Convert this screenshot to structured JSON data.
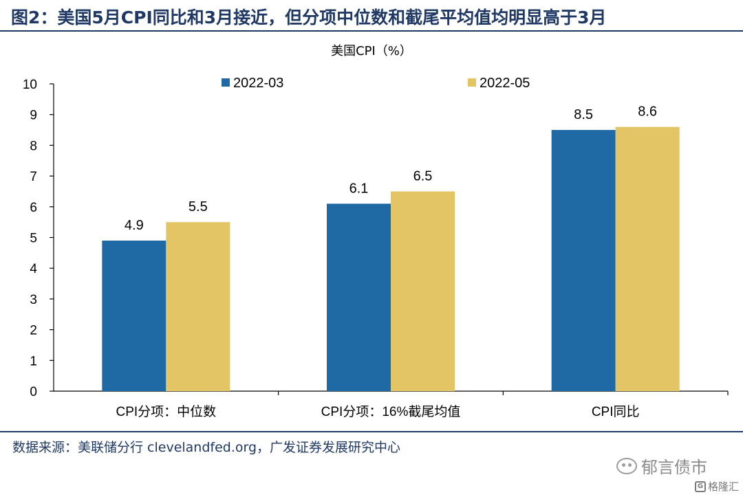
{
  "figure": {
    "title": "图2：美国5月CPI同比和3月接近，但分项中位数和截尾平均值均明显高于3月",
    "source": "数据来源：美联储分行 clevelandfed.org，广发证券发展研究中心",
    "watermark": "郁言债市",
    "watermark_small": "格隆汇",
    "watermark_small_mark": "G"
  },
  "chart_data": {
    "type": "bar",
    "title": "美国CPI（%）",
    "categories": [
      "CPI分项：中位数",
      "CPI分项：16%截尾均值",
      "CPI同比"
    ],
    "series": [
      {
        "name": "2022-03",
        "values": [
          4.9,
          6.1,
          8.5
        ],
        "color": "#1f6aa5"
      },
      {
        "name": "2022-05",
        "values": [
          5.5,
          6.5,
          8.6
        ],
        "color": "#e3c565"
      }
    ],
    "ylim": [
      0,
      10
    ],
    "yticks": [
      0,
      1,
      2,
      3,
      4,
      5,
      6,
      7,
      8,
      9,
      10
    ],
    "xlabel": "",
    "ylabel": "",
    "grid": false,
    "legend": "top"
  }
}
